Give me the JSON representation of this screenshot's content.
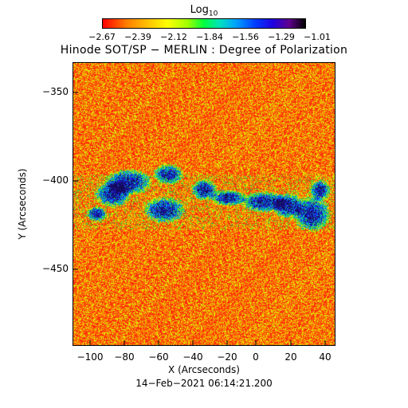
{
  "colorbar": {
    "title": "Log",
    "title_sub": "10",
    "ticks": [
      "−2.67",
      "−2.39",
      "−2.12",
      "−1.84",
      "−1.56",
      "−1.29",
      "−1.01"
    ]
  },
  "plot": {
    "title": "Hinode SOT/SP − MERLIN : Degree of Polarization",
    "x_axis_label": "X (Arcseconds)",
    "y_axis_label": "Y (Arcseconds)",
    "x_ticks": [
      "−100",
      "−80",
      "−60",
      "−40",
      "−20",
      "0",
      "20",
      "40"
    ],
    "y_ticks": [
      "−350",
      "−400",
      "−450"
    ],
    "x_range": [
      -107,
      46
    ],
    "y_range": [
      -495,
      -335
    ]
  },
  "timestamp": "14−Feb−2021 06:14:21.200",
  "colors": {
    "background_field": "#ff3a1a",
    "strong_polarization": "#101080"
  }
}
